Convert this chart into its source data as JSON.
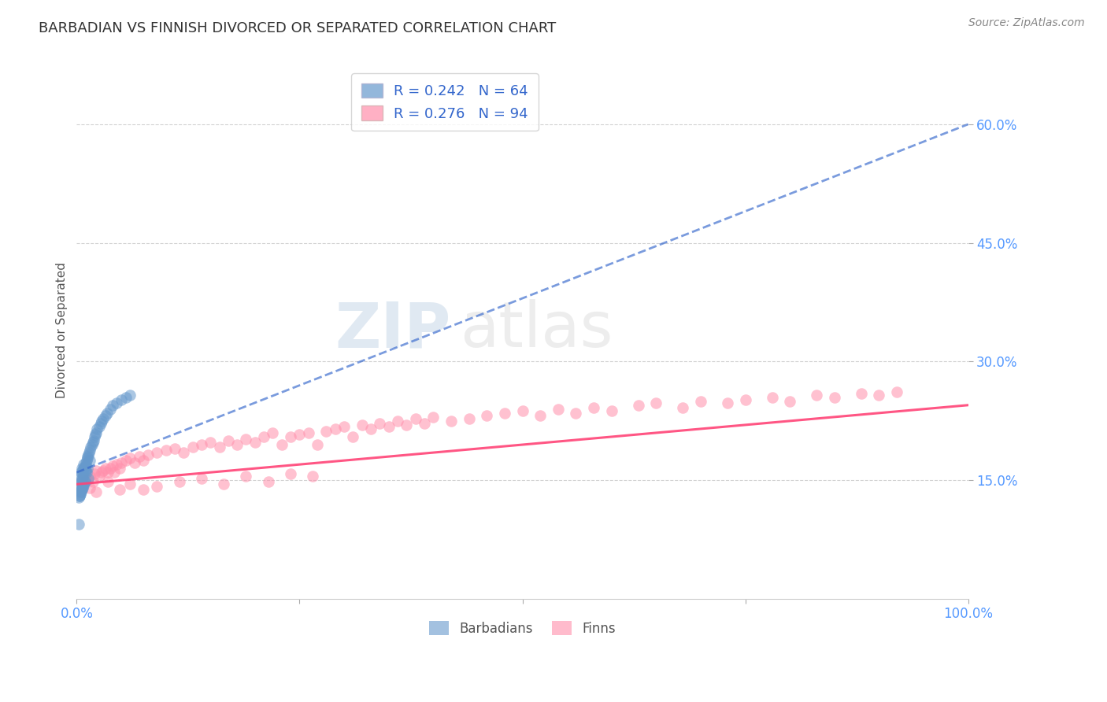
{
  "title": "BARBADIAN VS FINNISH DIVORCED OR SEPARATED CORRELATION CHART",
  "source": "Source: ZipAtlas.com",
  "ylabel": "Divorced or Separated",
  "ylim": [
    0.0,
    0.68
  ],
  "xlim": [
    0.0,
    1.0
  ],
  "yticks": [
    0.15,
    0.3,
    0.45,
    0.6
  ],
  "ytick_labels": [
    "15.0%",
    "30.0%",
    "45.0%",
    "60.0%"
  ],
  "barbadian_R": 0.242,
  "barbadian_N": 64,
  "finn_R": 0.276,
  "finn_N": 94,
  "barbadian_color": "#6699CC",
  "finn_color": "#FF8FAB",
  "barbadian_line_color": "#3366CC",
  "finn_line_color": "#FF4477",
  "legend_label_barbadian": "Barbadians",
  "legend_label_finn": "Finns",
  "watermark": "ZIPatlas",
  "background_color": "#FFFFFF",
  "grid_color": "#CCCCCC",
  "title_color": "#333333",
  "tick_color": "#5599FF",
  "barbadian_x": [
    0.002,
    0.003,
    0.003,
    0.004,
    0.004,
    0.005,
    0.005,
    0.005,
    0.006,
    0.006,
    0.006,
    0.007,
    0.007,
    0.007,
    0.007,
    0.008,
    0.008,
    0.008,
    0.008,
    0.009,
    0.009,
    0.009,
    0.01,
    0.01,
    0.01,
    0.011,
    0.011,
    0.012,
    0.012,
    0.012,
    0.013,
    0.013,
    0.014,
    0.015,
    0.015,
    0.016,
    0.017,
    0.018,
    0.019,
    0.02,
    0.021,
    0.022,
    0.023,
    0.025,
    0.027,
    0.028,
    0.03,
    0.032,
    0.034,
    0.038,
    0.04,
    0.045,
    0.05,
    0.055,
    0.06,
    0.002,
    0.003,
    0.004,
    0.005,
    0.006,
    0.007,
    0.008,
    0.009,
    0.002
  ],
  "barbadian_y": [
    0.155,
    0.142,
    0.13,
    0.145,
    0.132,
    0.148,
    0.16,
    0.135,
    0.152,
    0.165,
    0.138,
    0.158,
    0.163,
    0.153,
    0.14,
    0.165,
    0.17,
    0.156,
    0.143,
    0.163,
    0.168,
    0.148,
    0.168,
    0.172,
    0.162,
    0.175,
    0.16,
    0.178,
    0.18,
    0.165,
    0.182,
    0.152,
    0.185,
    0.188,
    0.175,
    0.192,
    0.195,
    0.198,
    0.2,
    0.205,
    0.208,
    0.21,
    0.215,
    0.218,
    0.222,
    0.225,
    0.228,
    0.232,
    0.235,
    0.24,
    0.245,
    0.248,
    0.252,
    0.255,
    0.258,
    0.128,
    0.13,
    0.135,
    0.137,
    0.14,
    0.143,
    0.145,
    0.148,
    0.095
  ],
  "finn_x": [
    0.005,
    0.008,
    0.01,
    0.012,
    0.015,
    0.018,
    0.02,
    0.022,
    0.025,
    0.028,
    0.03,
    0.032,
    0.035,
    0.038,
    0.04,
    0.042,
    0.045,
    0.048,
    0.05,
    0.055,
    0.06,
    0.065,
    0.07,
    0.075,
    0.08,
    0.09,
    0.1,
    0.11,
    0.12,
    0.13,
    0.14,
    0.15,
    0.16,
    0.17,
    0.18,
    0.19,
    0.2,
    0.21,
    0.22,
    0.23,
    0.24,
    0.25,
    0.26,
    0.27,
    0.28,
    0.29,
    0.3,
    0.31,
    0.32,
    0.33,
    0.34,
    0.35,
    0.36,
    0.37,
    0.38,
    0.39,
    0.4,
    0.42,
    0.44,
    0.46,
    0.48,
    0.5,
    0.52,
    0.54,
    0.56,
    0.58,
    0.6,
    0.63,
    0.65,
    0.68,
    0.7,
    0.73,
    0.75,
    0.78,
    0.8,
    0.83,
    0.85,
    0.88,
    0.9,
    0.92,
    0.015,
    0.022,
    0.035,
    0.048,
    0.06,
    0.075,
    0.09,
    0.115,
    0.14,
    0.165,
    0.19,
    0.215,
    0.24,
    0.265
  ],
  "finn_y": [
    0.148,
    0.15,
    0.152,
    0.15,
    0.155,
    0.148,
    0.158,
    0.162,
    0.155,
    0.16,
    0.162,
    0.165,
    0.16,
    0.165,
    0.168,
    0.16,
    0.17,
    0.165,
    0.172,
    0.175,
    0.178,
    0.172,
    0.18,
    0.175,
    0.182,
    0.185,
    0.188,
    0.19,
    0.185,
    0.192,
    0.195,
    0.198,
    0.192,
    0.2,
    0.195,
    0.202,
    0.198,
    0.205,
    0.21,
    0.195,
    0.205,
    0.208,
    0.21,
    0.195,
    0.212,
    0.215,
    0.218,
    0.205,
    0.22,
    0.215,
    0.222,
    0.218,
    0.225,
    0.22,
    0.228,
    0.222,
    0.23,
    0.225,
    0.228,
    0.232,
    0.235,
    0.238,
    0.232,
    0.24,
    0.235,
    0.242,
    0.238,
    0.245,
    0.248,
    0.242,
    0.25,
    0.248,
    0.252,
    0.255,
    0.25,
    0.258,
    0.255,
    0.26,
    0.258,
    0.262,
    0.14,
    0.135,
    0.148,
    0.138,
    0.145,
    0.138,
    0.142,
    0.148,
    0.152,
    0.145,
    0.155,
    0.148,
    0.158,
    0.155
  ]
}
